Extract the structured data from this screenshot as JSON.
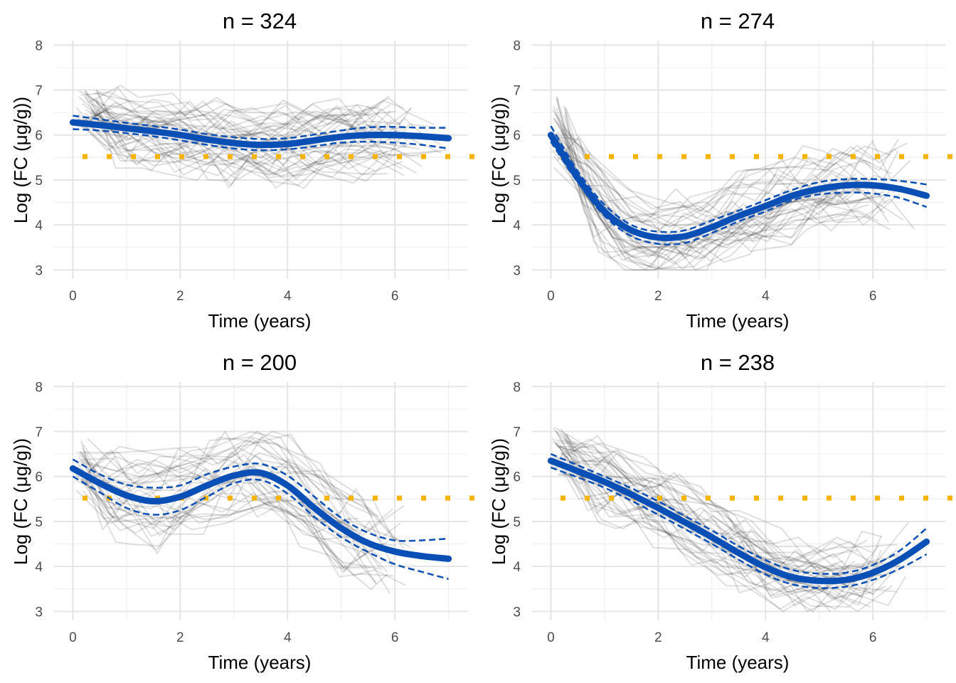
{
  "colors": {
    "fit": "#0a4fb5",
    "threshold": "#f4b400",
    "trajectory": "#000000",
    "grid_major": "#e5e5e5",
    "grid_minor": "#f0f0f0"
  },
  "chart_data": [
    {
      "type": "line",
      "title": "n = 324",
      "xlabel": "Time (years)",
      "ylabel": "Log (FC (μg/g))",
      "xlim": [
        -0.35,
        7.35
      ],
      "ylim": [
        2.8,
        8.1
      ],
      "x_ticks": [
        "0",
        "2",
        "4",
        "6"
      ],
      "y_ticks": [
        "3",
        "4",
        "5",
        "6",
        "7",
        "8"
      ],
      "grid": true,
      "threshold": 5.52,
      "fit": {
        "x": [
          0,
          0.5,
          1,
          1.5,
          2,
          2.5,
          3,
          3.5,
          4,
          4.5,
          5,
          5.5,
          6,
          6.5,
          7
        ],
        "y": [
          6.28,
          6.22,
          6.15,
          6.08,
          6.0,
          5.9,
          5.82,
          5.78,
          5.8,
          5.88,
          5.96,
          6.0,
          6.0,
          5.97,
          5.93
        ],
        "lower": [
          6.13,
          6.1,
          6.04,
          5.97,
          5.88,
          5.78,
          5.7,
          5.66,
          5.68,
          5.75,
          5.83,
          5.85,
          5.83,
          5.78,
          5.7
        ],
        "upper": [
          6.43,
          6.35,
          6.27,
          6.2,
          6.12,
          6.02,
          5.95,
          5.91,
          5.93,
          6.01,
          6.1,
          6.17,
          6.18,
          6.16,
          6.16
        ]
      },
      "trajectory_summary": {
        "count": 45,
        "start": [
          0.05,
          0.45
        ],
        "end": [
          5.8,
          7.0
        ],
        "range": [
          3.5,
          7.1
        ],
        "clip_min": null,
        "start_level": [
          6.2,
          7.0
        ],
        "jitter": 0.45
      }
    },
    {
      "type": "line",
      "title": "n = 274",
      "xlabel": "Time (years)",
      "ylabel": "Log (FC (μg/g))",
      "xlim": [
        -0.35,
        7.35
      ],
      "ylim": [
        2.8,
        8.1
      ],
      "x_ticks": [
        "0",
        "2",
        "4",
        "6"
      ],
      "y_ticks": [
        "3",
        "4",
        "5",
        "6",
        "7",
        "8"
      ],
      "grid": true,
      "threshold": 5.52,
      "fit": {
        "x": [
          0,
          0.5,
          1,
          1.5,
          2,
          2.5,
          3,
          3.5,
          4,
          4.5,
          5,
          5.5,
          6,
          6.5,
          7
        ],
        "y": [
          6.0,
          5.05,
          4.3,
          3.88,
          3.72,
          3.75,
          3.95,
          4.2,
          4.42,
          4.65,
          4.8,
          4.88,
          4.88,
          4.8,
          4.65
        ],
        "lower": [
          5.85,
          4.95,
          4.2,
          3.75,
          3.58,
          3.6,
          3.82,
          4.08,
          4.3,
          4.55,
          4.68,
          4.72,
          4.7,
          4.6,
          4.4
        ],
        "upper": [
          6.2,
          5.2,
          4.45,
          4.0,
          3.85,
          3.88,
          4.1,
          4.32,
          4.55,
          4.78,
          4.95,
          5.02,
          5.02,
          4.98,
          4.9
        ]
      },
      "trajectory_summary": {
        "count": 40,
        "start": [
          0.0,
          0.3
        ],
        "end": [
          5.5,
          6.9
        ],
        "range": [
          3.0,
          6.9
        ],
        "clip_min": 3.0,
        "start_level": [
          5.2,
          6.9
        ],
        "jitter": 0.5
      }
    },
    {
      "type": "line",
      "title": "n = 200",
      "xlabel": "Time (years)",
      "ylabel": "Log (FC (μg/g))",
      "xlim": [
        -0.35,
        7.35
      ],
      "ylim": [
        2.8,
        8.1
      ],
      "x_ticks": [
        "0",
        "2",
        "4",
        "6"
      ],
      "y_ticks": [
        "3",
        "4",
        "5",
        "6",
        "7",
        "8"
      ],
      "grid": true,
      "threshold": 5.52,
      "fit": {
        "x": [
          0,
          0.5,
          1,
          1.5,
          2,
          2.5,
          3,
          3.5,
          4,
          4.5,
          5,
          5.5,
          6,
          6.5,
          7
        ],
        "y": [
          6.18,
          5.85,
          5.58,
          5.45,
          5.55,
          5.8,
          6.02,
          6.08,
          5.8,
          5.3,
          4.85,
          4.52,
          4.33,
          4.23,
          4.17
        ],
        "lower": [
          6.0,
          5.65,
          5.3,
          5.15,
          5.25,
          5.55,
          5.85,
          5.92,
          5.62,
          5.1,
          4.65,
          4.32,
          4.05,
          3.88,
          3.72
        ],
        "upper": [
          6.38,
          6.05,
          5.82,
          5.75,
          5.8,
          6.05,
          6.22,
          6.28,
          6.02,
          5.55,
          5.08,
          4.75,
          4.58,
          4.58,
          4.62
        ]
      },
      "trajectory_summary": {
        "count": 35,
        "start": [
          0.0,
          0.3
        ],
        "end": [
          5.6,
          6.5
        ],
        "range": [
          3.0,
          7.0
        ],
        "clip_min": null,
        "start_level": [
          5.6,
          7.0
        ],
        "jitter": 0.55
      }
    },
    {
      "type": "line",
      "title": "n = 238",
      "xlabel": "Time (years)",
      "ylabel": "Log (FC (μg/g))",
      "xlim": [
        -0.35,
        7.35
      ],
      "ylim": [
        2.8,
        8.1
      ],
      "x_ticks": [
        "0",
        "2",
        "4",
        "6"
      ],
      "y_ticks": [
        "3",
        "4",
        "5",
        "6",
        "7",
        "8"
      ],
      "grid": true,
      "threshold": 5.52,
      "fit": {
        "x": [
          0,
          0.5,
          1,
          1.5,
          2,
          2.5,
          3,
          3.5,
          4,
          4.5,
          5,
          5.5,
          6,
          6.5,
          7
        ],
        "y": [
          6.35,
          6.12,
          5.88,
          5.6,
          5.3,
          4.98,
          4.65,
          4.3,
          3.98,
          3.76,
          3.68,
          3.7,
          3.86,
          4.15,
          4.55
        ],
        "lower": [
          6.2,
          5.98,
          5.75,
          5.46,
          5.15,
          4.83,
          4.5,
          4.15,
          3.82,
          3.6,
          3.52,
          3.55,
          3.7,
          3.95,
          4.27
        ],
        "upper": [
          6.5,
          6.25,
          6.0,
          5.74,
          5.45,
          5.12,
          4.8,
          4.45,
          4.14,
          3.92,
          3.84,
          3.86,
          4.03,
          4.35,
          4.85
        ]
      },
      "trajectory_summary": {
        "count": 40,
        "start": [
          0.0,
          0.3
        ],
        "end": [
          5.8,
          6.9
        ],
        "range": [
          3.0,
          7.1
        ],
        "clip_min": 3.0,
        "start_level": [
          6.0,
          7.1
        ],
        "jitter": 0.45
      }
    }
  ]
}
